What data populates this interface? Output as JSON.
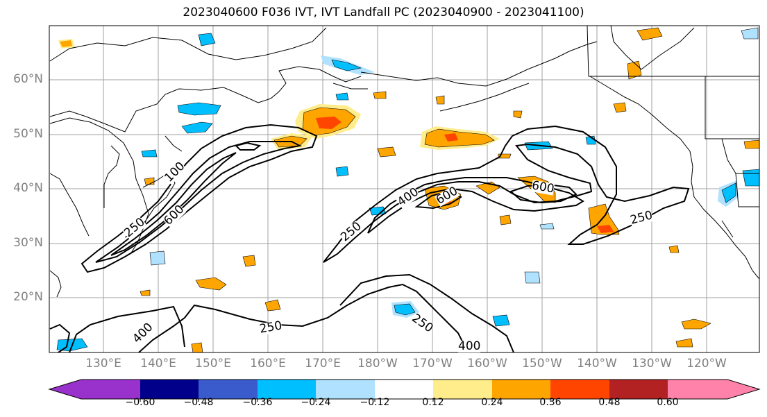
{
  "title": "2023040600 F036 IVT, IVT Landfall PC (2023040900 - 2023041100)",
  "lat_labels": [
    "60°N",
    "50°N",
    "40°N",
    "30°N",
    "20°N"
  ],
  "lon_labels": [
    "130°E",
    "140°E",
    "150°E",
    "160°E",
    "170°E",
    "180°W",
    "170°W",
    "160°W",
    "150°W",
    "140°W",
    "130°W",
    "120°W"
  ],
  "contour_labels": [
    "100",
    "250",
    "600",
    "250",
    "400",
    "600",
    "600",
    "250",
    "250",
    "400",
    "250",
    "400"
  ],
  "colorbar": {
    "colors": [
      "#9932cc",
      "#00008b",
      "#3a5bcc",
      "#00bfff",
      "#b0e2ff",
      "#ffffff",
      "#ffec8b",
      "#ffa500",
      "#ff4500",
      "#b22222",
      "#ff82ab"
    ],
    "tick_labels": [
      "−0.60",
      "−0.48",
      "−0.36",
      "−0.24",
      "−0.12",
      "0.12",
      "0.24",
      "0.36",
      "0.48",
      "0.60"
    ]
  }
}
